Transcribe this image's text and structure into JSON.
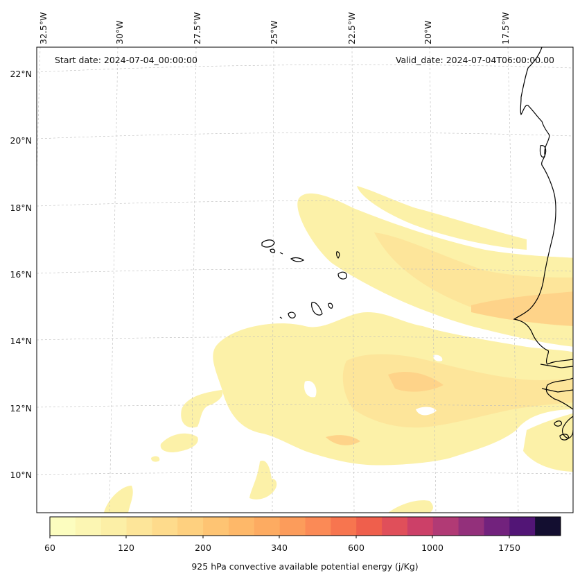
{
  "map": {
    "start_date": "Start date: 2024-07-04_00:00:00",
    "valid_date": "Valid_date: 2024-07-04T06:00:00.00",
    "lon_labels": [
      "32.5°W",
      "30°W",
      "27.5°W",
      "25°W",
      "22.5°W",
      "20°W",
      "17.5°W"
    ],
    "lat_labels": [
      "22°N",
      "20°N",
      "18°N",
      "16°N",
      "14°N",
      "12°N",
      "10°N"
    ],
    "gridlines": true,
    "coastline_color": "#000000"
  },
  "colorbar": {
    "title": "925 hPa convective available potential energy (j/Kg)",
    "tick_labels": [
      "60",
      "120",
      "200",
      "340",
      "600",
      "1000",
      "1750"
    ],
    "colors": [
      "#fcfdbf",
      "#fcf6b3",
      "#fcefa6",
      "#fde599",
      "#fedb8c",
      "#fed07f",
      "#fec473",
      "#feb869",
      "#fdab61",
      "#fc9c5b",
      "#fb8a56",
      "#f7754f",
      "#ef5f4c",
      "#e04f5a",
      "#cc4068",
      "#b13a75",
      "#93307b",
      "#72227d",
      "#521576",
      "#130e30"
    ]
  }
}
